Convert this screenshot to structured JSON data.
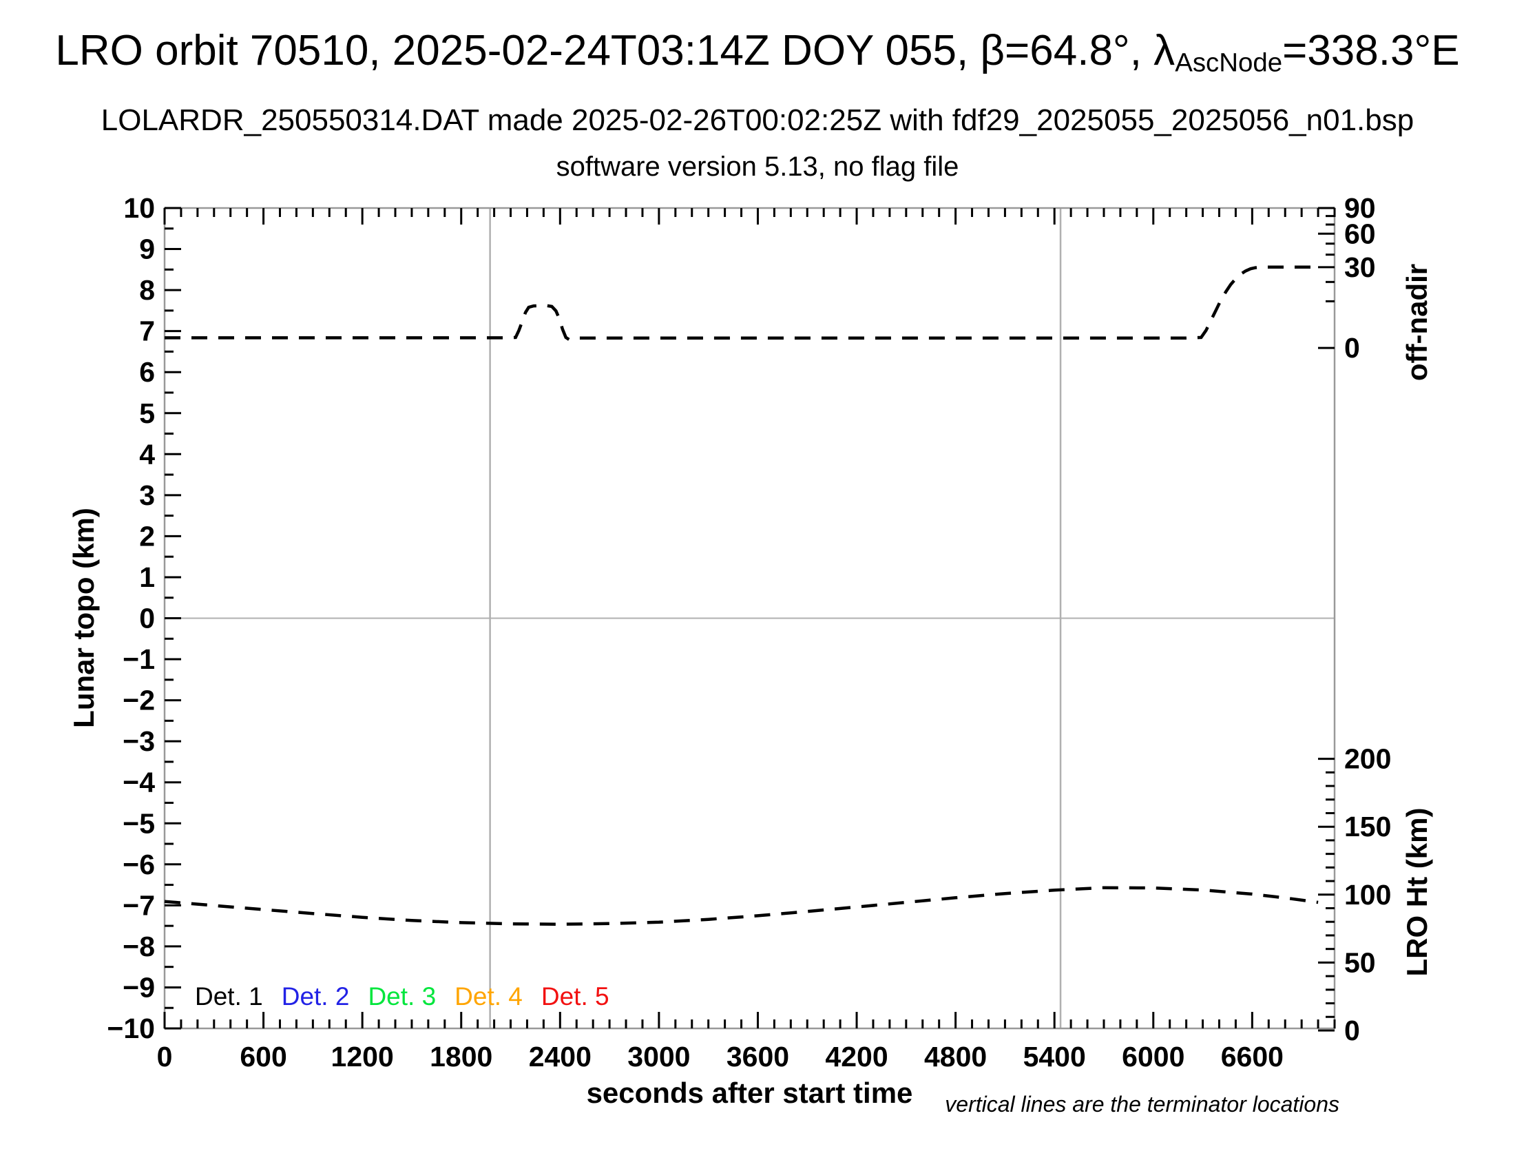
{
  "title": {
    "part1": "LRO orbit 70510, 2025-02-24T03:14Z DOY 055, β=64.8°, λ",
    "subscript": "AscNode",
    "part2": "=338.3°E"
  },
  "subtitle": "LOLARDR_250550314.DAT made 2025-02-26T00:02:25Z with fdf29_2025055_2025056_n01.bsp",
  "version_line": "software version 5.13, no flag file",
  "chart_data": {
    "type": "line",
    "x_axis": {
      "label": "seconds after start time",
      "min": 0,
      "max": 7100,
      "major_step": 600,
      "minor_step": 100,
      "last_labeled_tick": 6600,
      "tick_labels": [
        "0",
        "600",
        "1200",
        "1800",
        "2400",
        "3000",
        "3600",
        "4200",
        "4800",
        "5400",
        "6000",
        "6600"
      ]
    },
    "y_left": {
      "label": "Lunar topo (km)",
      "min": -10,
      "max": 10,
      "major_step": 1,
      "minor_step": 0.5
    },
    "y_right_top": {
      "label": "off-nadir",
      "scale": "sqrt",
      "unit": "deg",
      "major_ticks": [
        0,
        30,
        60,
        90
      ],
      "minor_step": 10,
      "max_deg": 90,
      "topo_at_zero": 6.59,
      "topo_at_max": 10.0
    },
    "y_right_bottom": {
      "label": "LRO Ht (km)",
      "scale": "linear",
      "unit": "km",
      "major_ticks": [
        0,
        50,
        100,
        150,
        200
      ],
      "minor_step": 10,
      "topo_at_zero_km": -10.05,
      "km_per_topo_unit": 30.2
    },
    "grid": {
      "zero_line_topo": 0,
      "terminator_lines_s": [
        1975,
        5437
      ],
      "guide_color": "#b0b0b0",
      "frame_color": "#999999"
    },
    "annotation": "vertical lines are the terminator locations",
    "legend": {
      "items": [
        {
          "label": "Det. 1",
          "color": "#000000"
        },
        {
          "label": "Det. 2",
          "color": "#2222e6"
        },
        {
          "label": "Det. 3",
          "color": "#00e63c"
        },
        {
          "label": "Det. 4",
          "color": "#ffa500"
        },
        {
          "label": "Det. 5",
          "color": "#f21111"
        }
      ]
    },
    "series": [
      {
        "name": "off-nadir angle",
        "axis": "off_nadir",
        "style": "dashed",
        "color": "#000000",
        "points": [
          [
            0,
            0.47
          ],
          [
            600,
            0.47
          ],
          [
            1200,
            0.47
          ],
          [
            1800,
            0.47
          ],
          [
            2080,
            0.47
          ],
          [
            2130,
            0.5
          ],
          [
            2150,
            1.4
          ],
          [
            2170,
            3.2
          ],
          [
            2190,
            5.8
          ],
          [
            2210,
            7.6
          ],
          [
            2240,
            8.1
          ],
          [
            2280,
            8.2
          ],
          [
            2320,
            8.2
          ],
          [
            2350,
            7.9
          ],
          [
            2375,
            6.3
          ],
          [
            2395,
            4.0
          ],
          [
            2415,
            1.6
          ],
          [
            2435,
            0.5
          ],
          [
            2455,
            0.32
          ],
          [
            2490,
            0.45
          ],
          [
            2700,
            0.45
          ],
          [
            3600,
            0.45
          ],
          [
            4500,
            0.45
          ],
          [
            5400,
            0.45
          ],
          [
            6000,
            0.45
          ],
          [
            6200,
            0.45
          ],
          [
            6290,
            0.5
          ],
          [
            6320,
            1.4
          ],
          [
            6350,
            3.5
          ],
          [
            6380,
            6.5
          ],
          [
            6410,
            10.5
          ],
          [
            6440,
            14.5
          ],
          [
            6470,
            18.5
          ],
          [
            6500,
            22
          ],
          [
            6530,
            25
          ],
          [
            6560,
            27.2
          ],
          [
            6590,
            28.8
          ],
          [
            6620,
            29.6
          ],
          [
            6650,
            30
          ],
          [
            6750,
            30
          ],
          [
            6870,
            30
          ],
          [
            6990,
            30
          ]
        ]
      },
      {
        "name": "LRO height",
        "axis": "lro_ht",
        "style": "dashed",
        "color": "#000000",
        "points": [
          [
            0,
            95.0
          ],
          [
            300,
            92.0
          ],
          [
            600,
            89.0
          ],
          [
            900,
            86.1
          ],
          [
            1200,
            83.3
          ],
          [
            1500,
            81.0
          ],
          [
            1800,
            79.4
          ],
          [
            2100,
            78.5
          ],
          [
            2400,
            78.2
          ],
          [
            2700,
            78.7
          ],
          [
            3000,
            79.7
          ],
          [
            3300,
            81.8
          ],
          [
            3600,
            84.5
          ],
          [
            3900,
            87.6
          ],
          [
            4200,
            90.9
          ],
          [
            4500,
            94.3
          ],
          [
            4800,
            97.7
          ],
          [
            5100,
            100.8
          ],
          [
            5400,
            103.3
          ],
          [
            5700,
            105.1
          ],
          [
            6000,
            104.9
          ],
          [
            6300,
            103.4
          ],
          [
            6600,
            100.4
          ],
          [
            6800,
            97.6
          ],
          [
            7000,
            94.3
          ]
        ]
      }
    ]
  }
}
